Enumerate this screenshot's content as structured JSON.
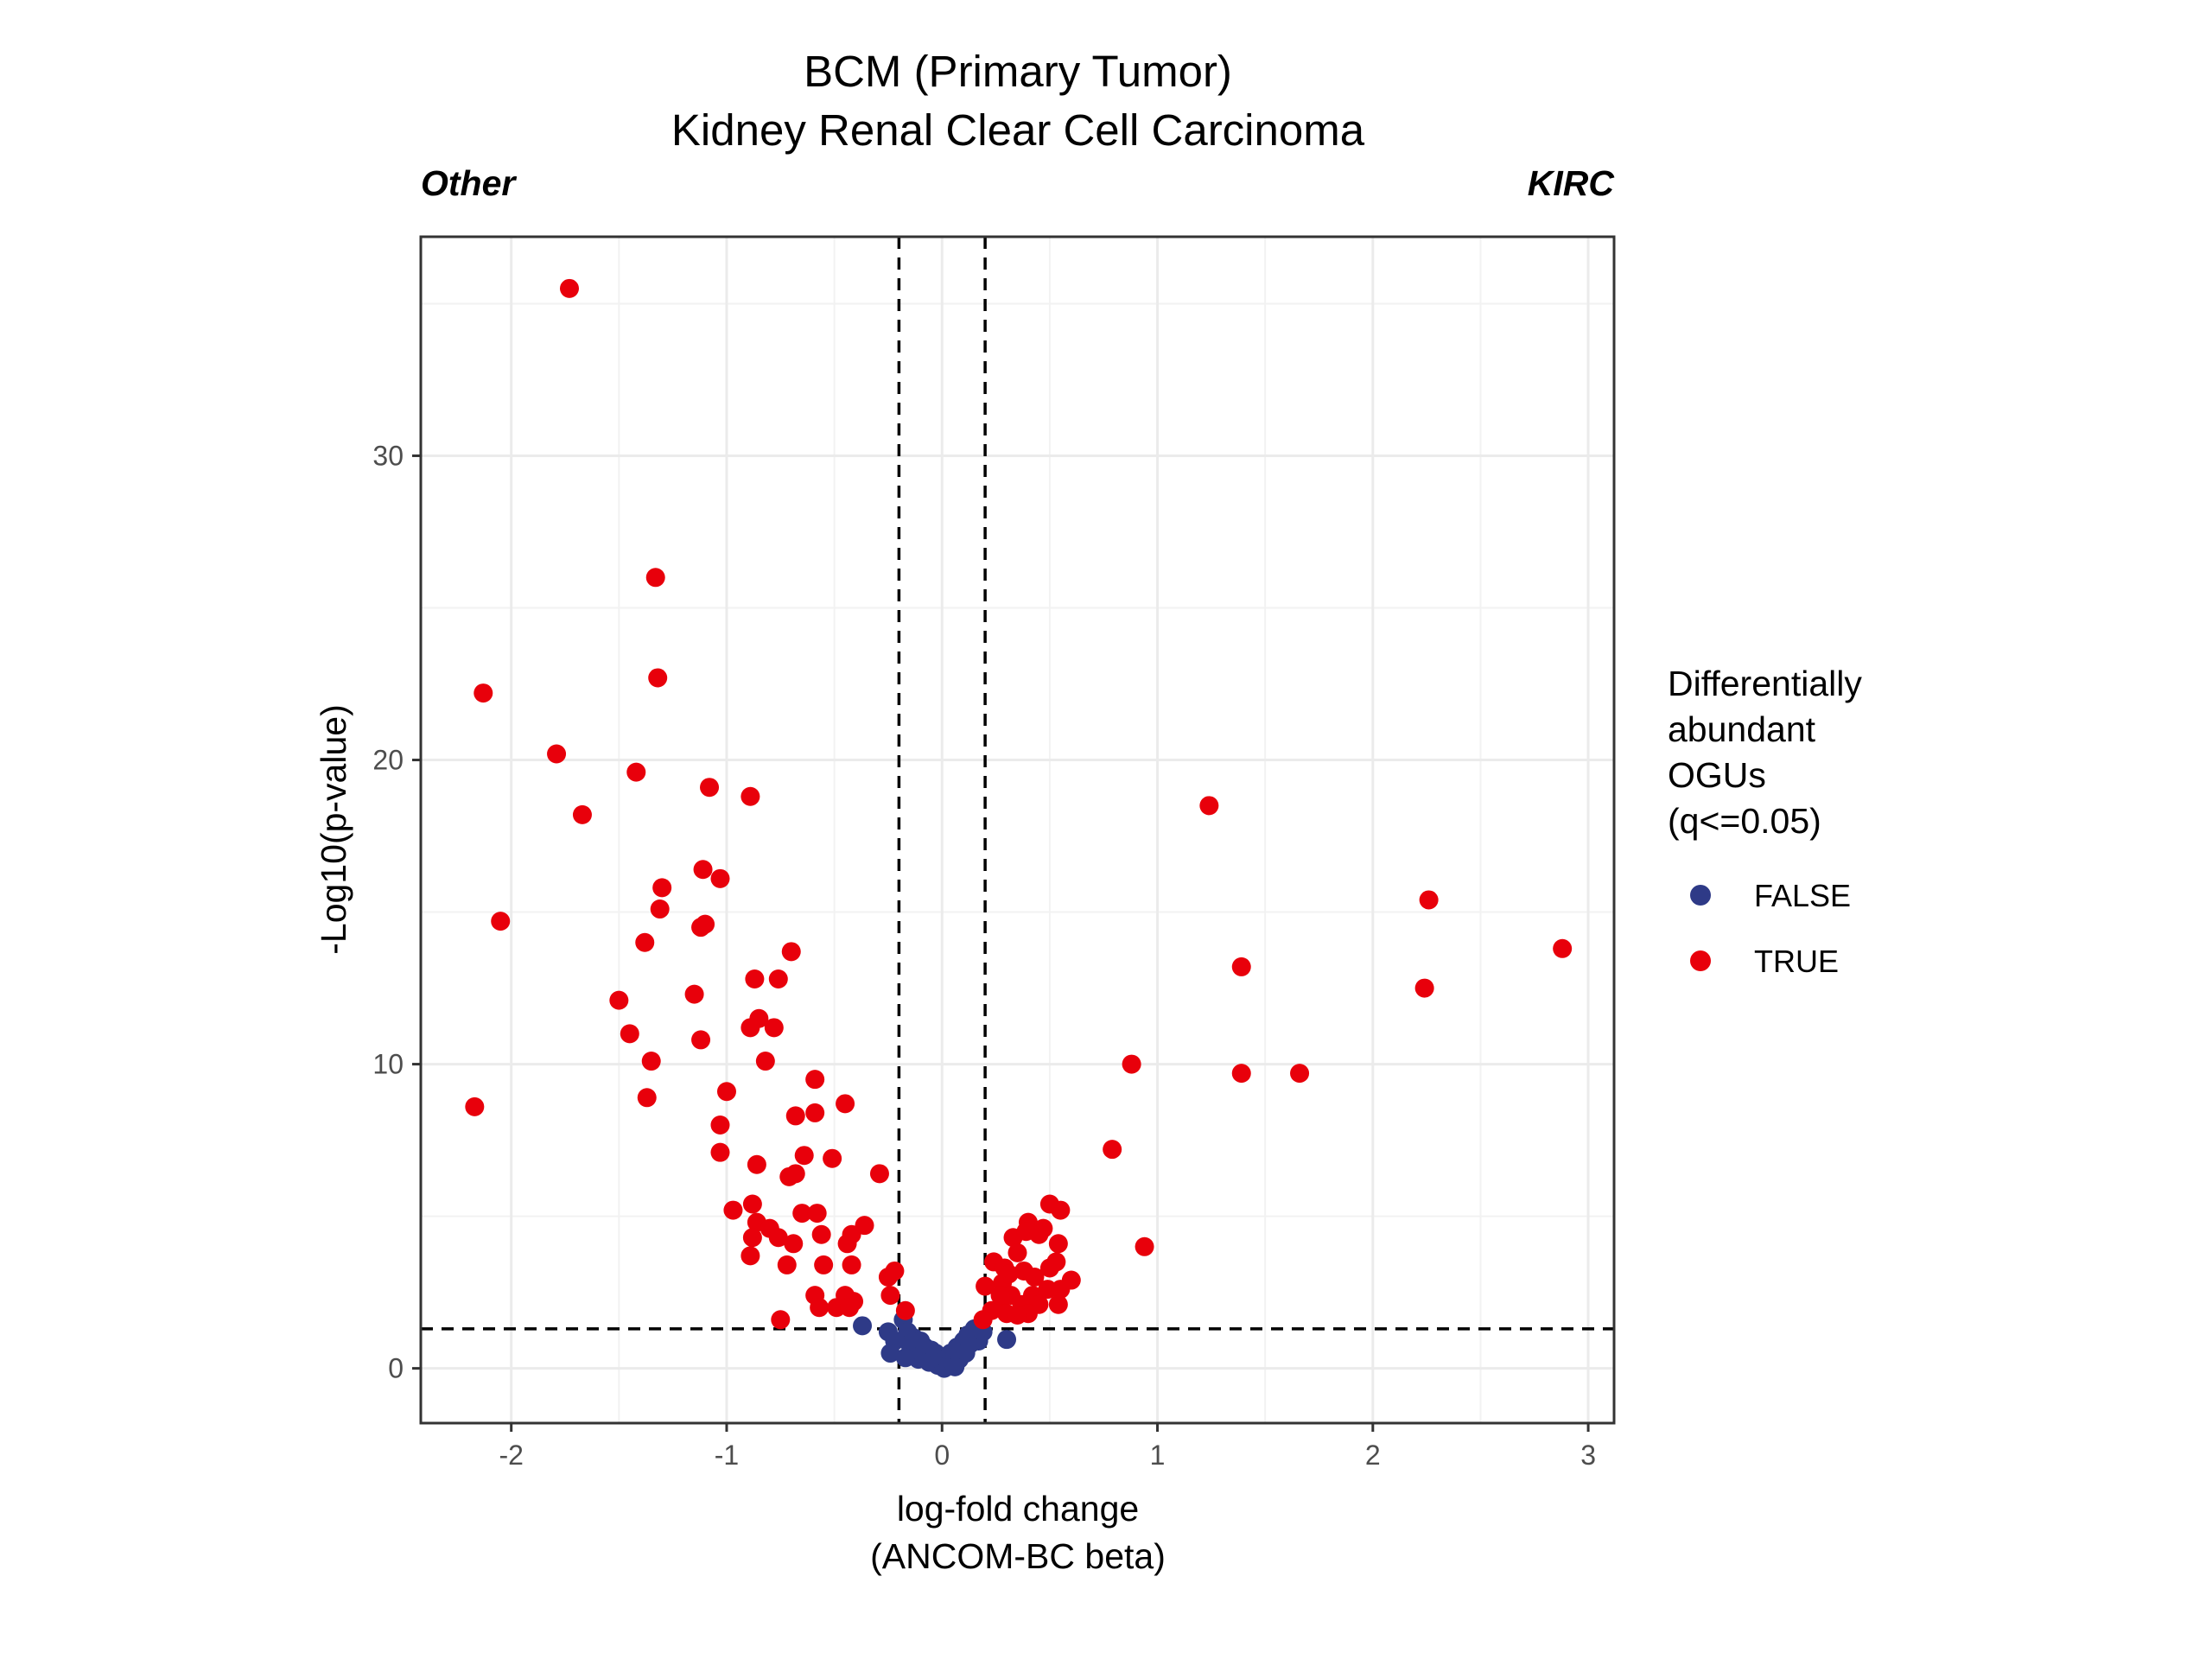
{
  "chart_data": {
    "type": "scatter",
    "title": "BCM (Primary Tumor)",
    "subtitle": "Kidney Renal Clear Cell Carcinoma",
    "left_label": "Other",
    "right_label": "KIRC",
    "xlabel_line1": "log-fold change",
    "xlabel_line2": "(ANCOM-BC beta)",
    "ylabel": "-Log10(p-value)",
    "xlim": [
      -2.42,
      3.12
    ],
    "ylim": [
      -1.8,
      37.2
    ],
    "x_ticks": [
      -2,
      -1,
      0,
      1,
      2,
      3
    ],
    "x_tick_labels": [
      "-2",
      "-1",
      "0",
      "1",
      "2",
      "3"
    ],
    "y_ticks": [
      0,
      10,
      20,
      30
    ],
    "y_tick_labels": [
      "0",
      "10",
      "20",
      "30"
    ],
    "grid": true,
    "reference_lines": {
      "vertical": [
        -0.2,
        0.2
      ],
      "horizontal": [
        1.3
      ]
    },
    "legend": {
      "title_lines": [
        "Differentially",
        "abundant",
        "OGUs",
        "(q<=0.05)"
      ],
      "placement": "right",
      "entries": [
        {
          "label": "FALSE",
          "color": "#2e3a87"
        },
        {
          "label": "TRUE",
          "color": "#e8000b"
        }
      ]
    },
    "series": [
      {
        "name": "FALSE",
        "color": "#2e3a87",
        "points": [
          [
            -0.37,
            1.4
          ],
          [
            -0.25,
            1.2
          ],
          [
            -0.22,
            0.9
          ],
          [
            -0.24,
            0.5
          ],
          [
            -0.18,
            1.6
          ],
          [
            -0.16,
            1.2
          ],
          [
            -0.15,
            0.8
          ],
          [
            -0.13,
            1.0
          ],
          [
            -0.12,
            0.6
          ],
          [
            -0.11,
            0.3
          ],
          [
            -0.1,
            0.9
          ],
          [
            -0.09,
            0.5
          ],
          [
            -0.08,
            0.7
          ],
          [
            -0.07,
            0.4
          ],
          [
            -0.06,
            0.2
          ],
          [
            -0.05,
            0.6
          ],
          [
            -0.04,
            0.3
          ],
          [
            -0.03,
            0.5
          ],
          [
            -0.02,
            0.1
          ],
          [
            -0.01,
            0.4
          ],
          [
            0.0,
            0.2
          ],
          [
            0.01,
            0.0
          ],
          [
            0.02,
            0.3
          ],
          [
            0.03,
            0.1
          ],
          [
            0.04,
            0.5
          ],
          [
            0.05,
            0.2
          ],
          [
            0.06,
            0.4
          ],
          [
            0.07,
            0.7
          ],
          [
            0.08,
            0.3
          ],
          [
            0.09,
            0.6
          ],
          [
            0.1,
            0.9
          ],
          [
            0.11,
            0.5
          ],
          [
            0.12,
            1.1
          ],
          [
            0.13,
            0.8
          ],
          [
            0.15,
            1.3
          ],
          [
            0.17,
            0.9
          ],
          [
            0.19,
            1.2
          ],
          [
            0.3,
            0.95
          ],
          [
            -0.17,
            0.35
          ],
          [
            0.06,
            0.05
          ]
        ]
      },
      {
        "name": "TRUE",
        "color": "#e8000b",
        "points": [
          [
            -1.73,
            35.5
          ],
          [
            -1.33,
            26.0
          ],
          [
            -1.32,
            22.7
          ],
          [
            -2.13,
            22.2
          ],
          [
            -1.79,
            20.2
          ],
          [
            -1.42,
            19.6
          ],
          [
            -1.08,
            19.1
          ],
          [
            -0.89,
            18.8
          ],
          [
            -1.67,
            18.2
          ],
          [
            -1.11,
            16.4
          ],
          [
            -1.03,
            16.1
          ],
          [
            -1.3,
            15.8
          ],
          [
            -1.31,
            15.1
          ],
          [
            -2.05,
            14.7
          ],
          [
            -1.1,
            14.6
          ],
          [
            -1.12,
            14.5
          ],
          [
            -1.38,
            14.0
          ],
          [
            -0.7,
            13.7
          ],
          [
            -0.87,
            12.8
          ],
          [
            -0.76,
            12.8
          ],
          [
            -1.15,
            12.3
          ],
          [
            -1.5,
            12.1
          ],
          [
            -0.85,
            11.5
          ],
          [
            -0.89,
            11.2
          ],
          [
            -0.78,
            11.2
          ],
          [
            -1.45,
            11.0
          ],
          [
            -1.12,
            10.8
          ],
          [
            -1.35,
            10.1
          ],
          [
            -0.82,
            10.1
          ],
          [
            -0.59,
            9.5
          ],
          [
            -1.37,
            8.9
          ],
          [
            -1.0,
            9.1
          ],
          [
            -2.17,
            8.6
          ],
          [
            -0.45,
            8.7
          ],
          [
            -0.68,
            8.3
          ],
          [
            -0.59,
            8.4
          ],
          [
            -1.03,
            8.0
          ],
          [
            -0.64,
            7.0
          ],
          [
            -0.51,
            6.9
          ],
          [
            -1.03,
            7.1
          ],
          [
            -0.86,
            6.7
          ],
          [
            -0.71,
            6.3
          ],
          [
            -0.68,
            6.4
          ],
          [
            -0.29,
            6.4
          ],
          [
            -0.88,
            5.4
          ],
          [
            -0.97,
            5.2
          ],
          [
            -0.65,
            5.1
          ],
          [
            -0.58,
            5.1
          ],
          [
            -0.86,
            4.8
          ],
          [
            -0.8,
            4.6
          ],
          [
            -0.36,
            4.7
          ],
          [
            -0.76,
            4.3
          ],
          [
            -0.88,
            4.3
          ],
          [
            -0.69,
            4.1
          ],
          [
            -0.56,
            4.4
          ],
          [
            -0.42,
            4.4
          ],
          [
            -0.44,
            4.1
          ],
          [
            -0.89,
            3.7
          ],
          [
            -0.72,
            3.4
          ],
          [
            -0.55,
            3.4
          ],
          [
            -0.42,
            3.4
          ],
          [
            -0.25,
            3.0
          ],
          [
            -0.22,
            3.2
          ],
          [
            -0.24,
            2.4
          ],
          [
            -0.59,
            2.4
          ],
          [
            -0.45,
            2.4
          ],
          [
            -0.57,
            2.0
          ],
          [
            -0.49,
            2.0
          ],
          [
            -0.41,
            2.2
          ],
          [
            -0.17,
            1.9
          ],
          [
            -0.75,
            1.6
          ],
          [
            -0.43,
            2.0
          ],
          [
            0.5,
            5.4
          ],
          [
            0.55,
            5.2
          ],
          [
            0.4,
            4.8
          ],
          [
            0.47,
            4.6
          ],
          [
            0.33,
            4.3
          ],
          [
            0.39,
            4.5
          ],
          [
            0.54,
            4.1
          ],
          [
            0.45,
            4.4
          ],
          [
            0.24,
            3.5
          ],
          [
            0.29,
            3.3
          ],
          [
            0.35,
            3.8
          ],
          [
            0.5,
            3.3
          ],
          [
            0.43,
            3.0
          ],
          [
            0.53,
            3.5
          ],
          [
            0.38,
            3.2
          ],
          [
            0.28,
            2.8
          ],
          [
            0.2,
            2.7
          ],
          [
            0.31,
            3.1
          ],
          [
            0.6,
            2.9
          ],
          [
            0.42,
            2.4
          ],
          [
            0.49,
            2.6
          ],
          [
            0.55,
            2.6
          ],
          [
            0.37,
            2.1
          ],
          [
            0.27,
            2.0
          ],
          [
            0.23,
            1.9
          ],
          [
            0.32,
            2.4
          ],
          [
            0.54,
            2.1
          ],
          [
            0.45,
            2.1
          ],
          [
            0.4,
            1.8
          ],
          [
            0.3,
            1.8
          ],
          [
            0.19,
            1.6
          ],
          [
            0.35,
            1.75
          ],
          [
            0.27,
            2.4
          ],
          [
            1.24,
            18.5
          ],
          [
            2.26,
            15.4
          ],
          [
            2.88,
            13.8
          ],
          [
            1.39,
            13.2
          ],
          [
            2.24,
            12.5
          ],
          [
            0.88,
            10.0
          ],
          [
            1.39,
            9.7
          ],
          [
            1.66,
            9.7
          ],
          [
            0.79,
            7.2
          ],
          [
            0.94,
            4.0
          ]
        ]
      }
    ]
  }
}
